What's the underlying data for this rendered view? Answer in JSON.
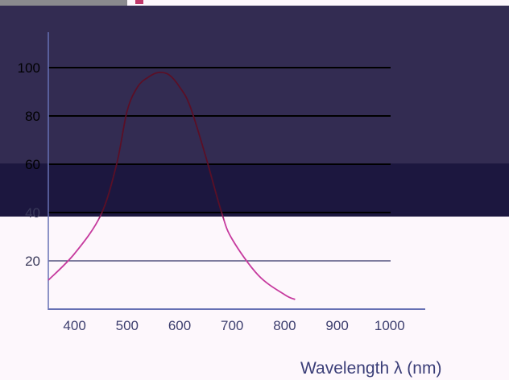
{
  "chart_data": {
    "type": "line",
    "xlabel": "Wavelength λ (nm)",
    "ylabel": "",
    "x_ticks": [
      "400",
      "500",
      "600",
      "700",
      "800",
      "900",
      "1000"
    ],
    "y_ticks": [
      "20",
      "40",
      "60",
      "80",
      "100"
    ],
    "xlim": [
      350,
      1000
    ],
    "ylim": [
      0,
      115
    ],
    "grid": "horizontal",
    "series": [
      {
        "x": [
          350,
          400,
          450,
          480,
          500,
          520,
          540,
          560,
          580,
          600,
          620,
          650,
          680,
          700,
          750,
          800,
          820
        ],
        "y": [
          12,
          23,
          39,
          60,
          82,
          92,
          96,
          98,
          97,
          92,
          84,
          63,
          40,
          29,
          14,
          6,
          4
        ]
      }
    ],
    "colors": {
      "curve_top": "#5a0f26",
      "curve_bottom": "#c63a9e",
      "axis": "#6670b4",
      "grid_dark": "#000000",
      "grid_light": "#323266",
      "band_upper": "#332c52",
      "band_lower": "#1c173f",
      "background": "#fdf7fc"
    }
  }
}
